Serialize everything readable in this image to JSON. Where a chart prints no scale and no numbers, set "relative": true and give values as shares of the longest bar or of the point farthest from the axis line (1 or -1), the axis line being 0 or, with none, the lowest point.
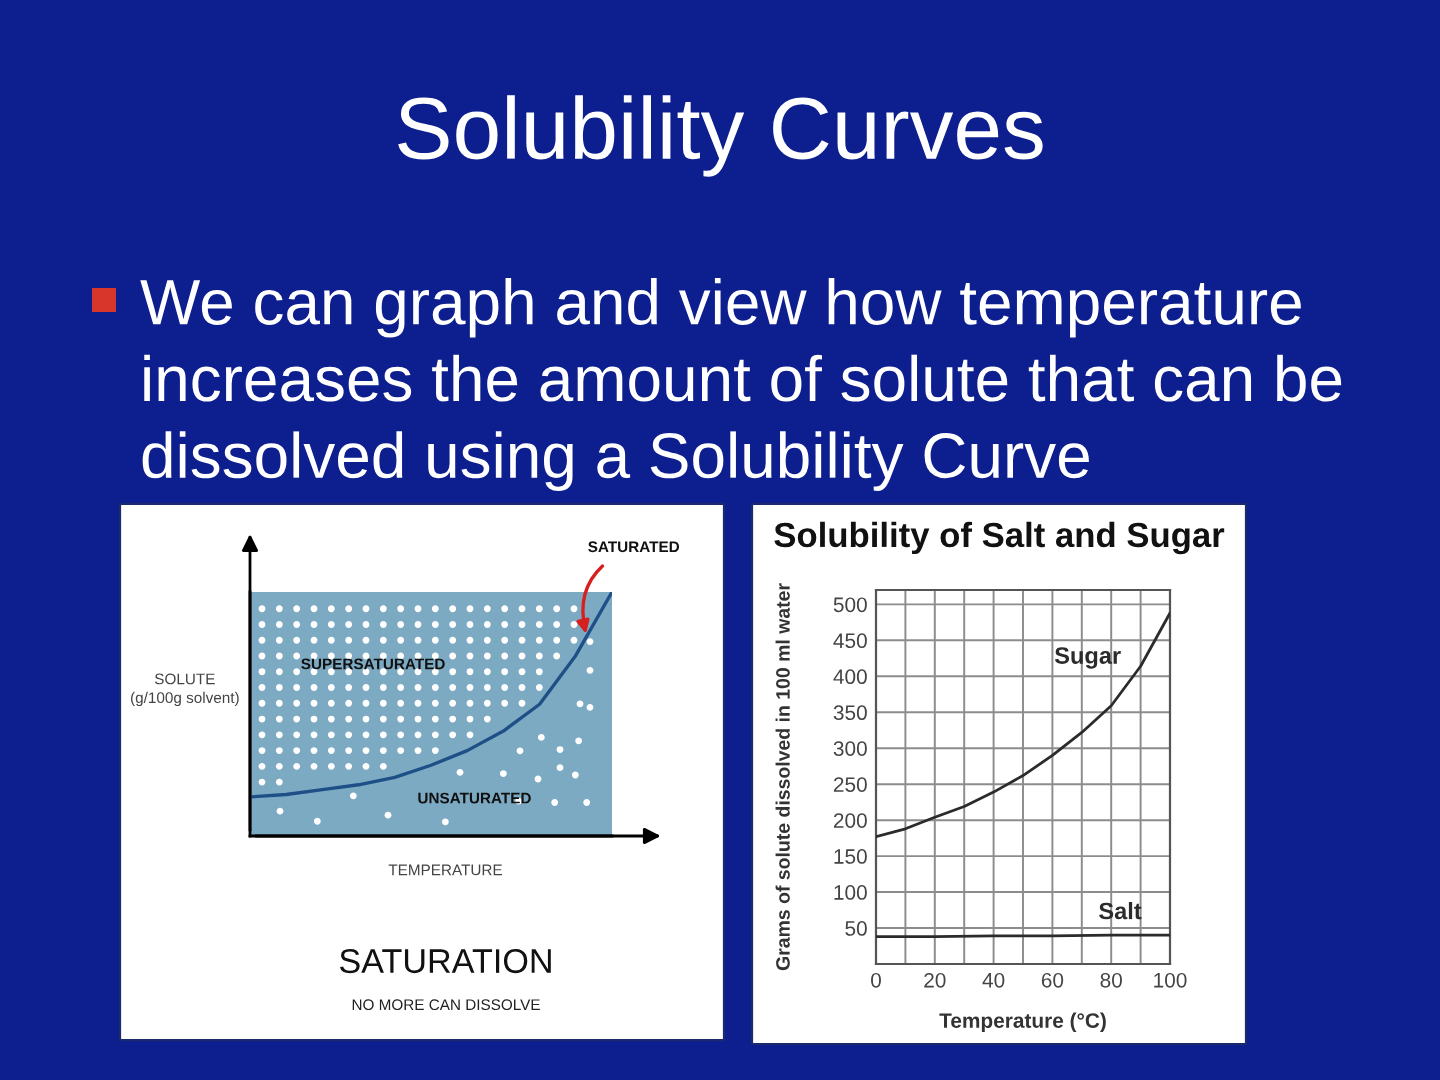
{
  "chart_data": [
    {
      "type": "other",
      "title": "Solubility Curves",
      "annotations": [
        "We can graph and view how temperature increases the amount of solute that can be dissolved using a Solubility Curve"
      ]
    },
    {
      "type": "line",
      "title": "SATURATION",
      "subtitle": "NO MORE CAN DISSOLVE",
      "xlabel": "TEMPERATURE",
      "ylabel": "SOLUTE\n(g/100g solvent)",
      "categories": [
        null,
        null,
        null,
        null,
        null,
        null,
        null,
        null,
        null,
        null,
        null
      ],
      "values": [
        0.16,
        0.17,
        0.19,
        0.21,
        0.24,
        0.29,
        0.35,
        0.43,
        0.54,
        0.74,
        1.0
      ],
      "color": "#1e4f86",
      "relative": true,
      "annotations": [
        "SATURATED",
        "SUPERSATURATED",
        "UNSATURATED"
      ]
    },
    {
      "type": "line",
      "title": "Solubility of Salt and Sugar",
      "xlabel": "Temperature (°C)",
      "ylabel": "Grams of solute dissolved in 100 ml water",
      "x": [
        0,
        10,
        20,
        30,
        40,
        50,
        60,
        70,
        80,
        90,
        100
      ],
      "series": [
        {
          "name": "Sugar",
          "color": "#2b2b2b",
          "values": [
            177,
            188,
            204,
            219,
            239,
            262,
            290,
            322,
            359,
            414,
            488
          ]
        },
        {
          "name": "Salt",
          "color": "#2b2b2b",
          "x": [
            0,
            20,
            40,
            60,
            80,
            100
          ],
          "values": [
            38,
            38,
            39,
            39,
            40,
            40
          ]
        }
      ],
      "xlim": [
        0,
        100
      ],
      "xticks": [
        0,
        {
          "value": 10,
          "label": null
        },
        20,
        {
          "value": 30,
          "label": null
        },
        40,
        {
          "value": 50,
          "label": null
        },
        60,
        {
          "value": 70,
          "label": null
        },
        80,
        {
          "value": 90,
          "label": null
        },
        100
      ],
      "ylim": [
        0,
        520
      ],
      "yticks": [
        50,
        100,
        150,
        200,
        250,
        300,
        350,
        400,
        450,
        500
      ],
      "grid": true
    }
  ]
}
